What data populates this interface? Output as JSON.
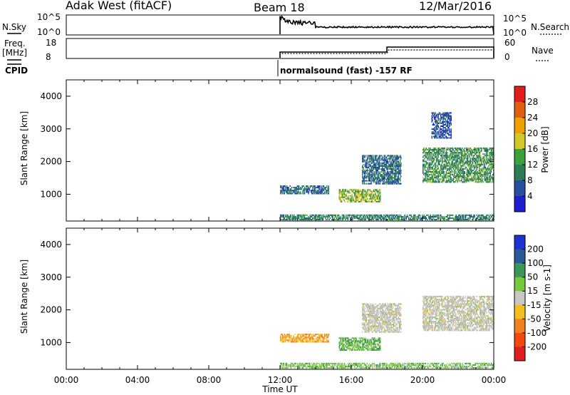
{
  "header": {
    "station": "Adak West (fitACF)",
    "beam": "Beam 18",
    "date": "12/Mar/2016"
  },
  "nsky_panel": {
    "left_label": "N.Sky",
    "right_label": "N.Search",
    "left_ticks": [
      "10^5",
      "10^0"
    ],
    "right_ticks": [
      "10^5",
      "10^0"
    ]
  },
  "freq_panel": {
    "left_label_1": "Freq.",
    "left_label_2": "[MHz]",
    "right_label": "Nave",
    "left_ticks": [
      "18",
      "8"
    ],
    "right_ticks": [
      "60",
      "0"
    ]
  },
  "cpid": {
    "label": "CPID",
    "mode_text": "normalsound (fast) -157 RF"
  },
  "colors": {
    "power": [
      "#1e1ed2",
      "#2850a0",
      "#2e7d5a",
      "#3ca03c",
      "#d2c828",
      "#f0a000",
      "#e06010",
      "#e01e1e"
    ],
    "velocity": [
      "#e01e1e",
      "#f04a10",
      "#f08020",
      "#f0c020",
      "#c8c8c0",
      "#78c83c",
      "#3c965a",
      "#2a5a96",
      "#1e32d2"
    ],
    "ground_scatter": "#bdbdb4"
  },
  "chart_data": [
    {
      "type": "heatmap",
      "title": "Power",
      "ylabel": "Slant Range [km]",
      "xlabel": "",
      "x_range_hours": [
        0,
        24
      ],
      "ylim": [
        180,
        4500
      ],
      "yticks": [
        1000,
        2000,
        3000,
        4000
      ],
      "colorbar": {
        "label": "Power [dB]",
        "ticks": [
          4,
          8,
          12,
          16,
          20,
          24,
          28
        ],
        "range": [
          0,
          32
        ]
      },
      "echo_regions": [
        {
          "t": [
            12.0,
            14.7
          ],
          "r": [
            1000,
            1250
          ],
          "value": 8
        },
        {
          "t": [
            15.3,
            17.6
          ],
          "r": [
            750,
            1150
          ],
          "value": 16
        },
        {
          "t": [
            16.6,
            18.8
          ],
          "r": [
            1300,
            2200
          ],
          "value": 8
        },
        {
          "t": [
            20.0,
            24.0
          ],
          "r": [
            1350,
            2400
          ],
          "value": 12
        },
        {
          "t": [
            20.5,
            21.6
          ],
          "r": [
            2700,
            3500
          ],
          "value": 6
        },
        {
          "t": [
            12.0,
            24.0
          ],
          "r": [
            200,
            360
          ],
          "value": 10
        }
      ]
    },
    {
      "type": "heatmap",
      "title": "Velocity",
      "ylabel": "Slant Range [km]",
      "xlabel": "Time UT",
      "x_range_hours": [
        0,
        24
      ],
      "ylim": [
        180,
        4500
      ],
      "yticks": [
        1000,
        2000,
        3000,
        4000
      ],
      "xtick_labels": [
        "00:00",
        "04:00",
        "08:00",
        "12:00",
        "16:00",
        "20:00",
        "00:00"
      ],
      "colorbar": {
        "label": "Velocity [m s-1]",
        "ticks": [
          "200",
          "100",
          "50",
          "15",
          "-15",
          "-50",
          "-100",
          "-200"
        ]
      },
      "echo_regions": [
        {
          "t": [
            12.0,
            14.7
          ],
          "r": [
            1000,
            1250
          ],
          "value": -50
        },
        {
          "t": [
            15.3,
            17.6
          ],
          "r": [
            750,
            1150
          ],
          "value": 50
        },
        {
          "t": [
            16.6,
            18.8
          ],
          "r": [
            1300,
            2200
          ],
          "value": 0
        },
        {
          "t": [
            20.0,
            24.0
          ],
          "r": [
            1350,
            2400
          ],
          "value": 0
        },
        {
          "t": [
            12.0,
            24.0
          ],
          "r": [
            200,
            360
          ],
          "value": 30
        }
      ]
    }
  ]
}
